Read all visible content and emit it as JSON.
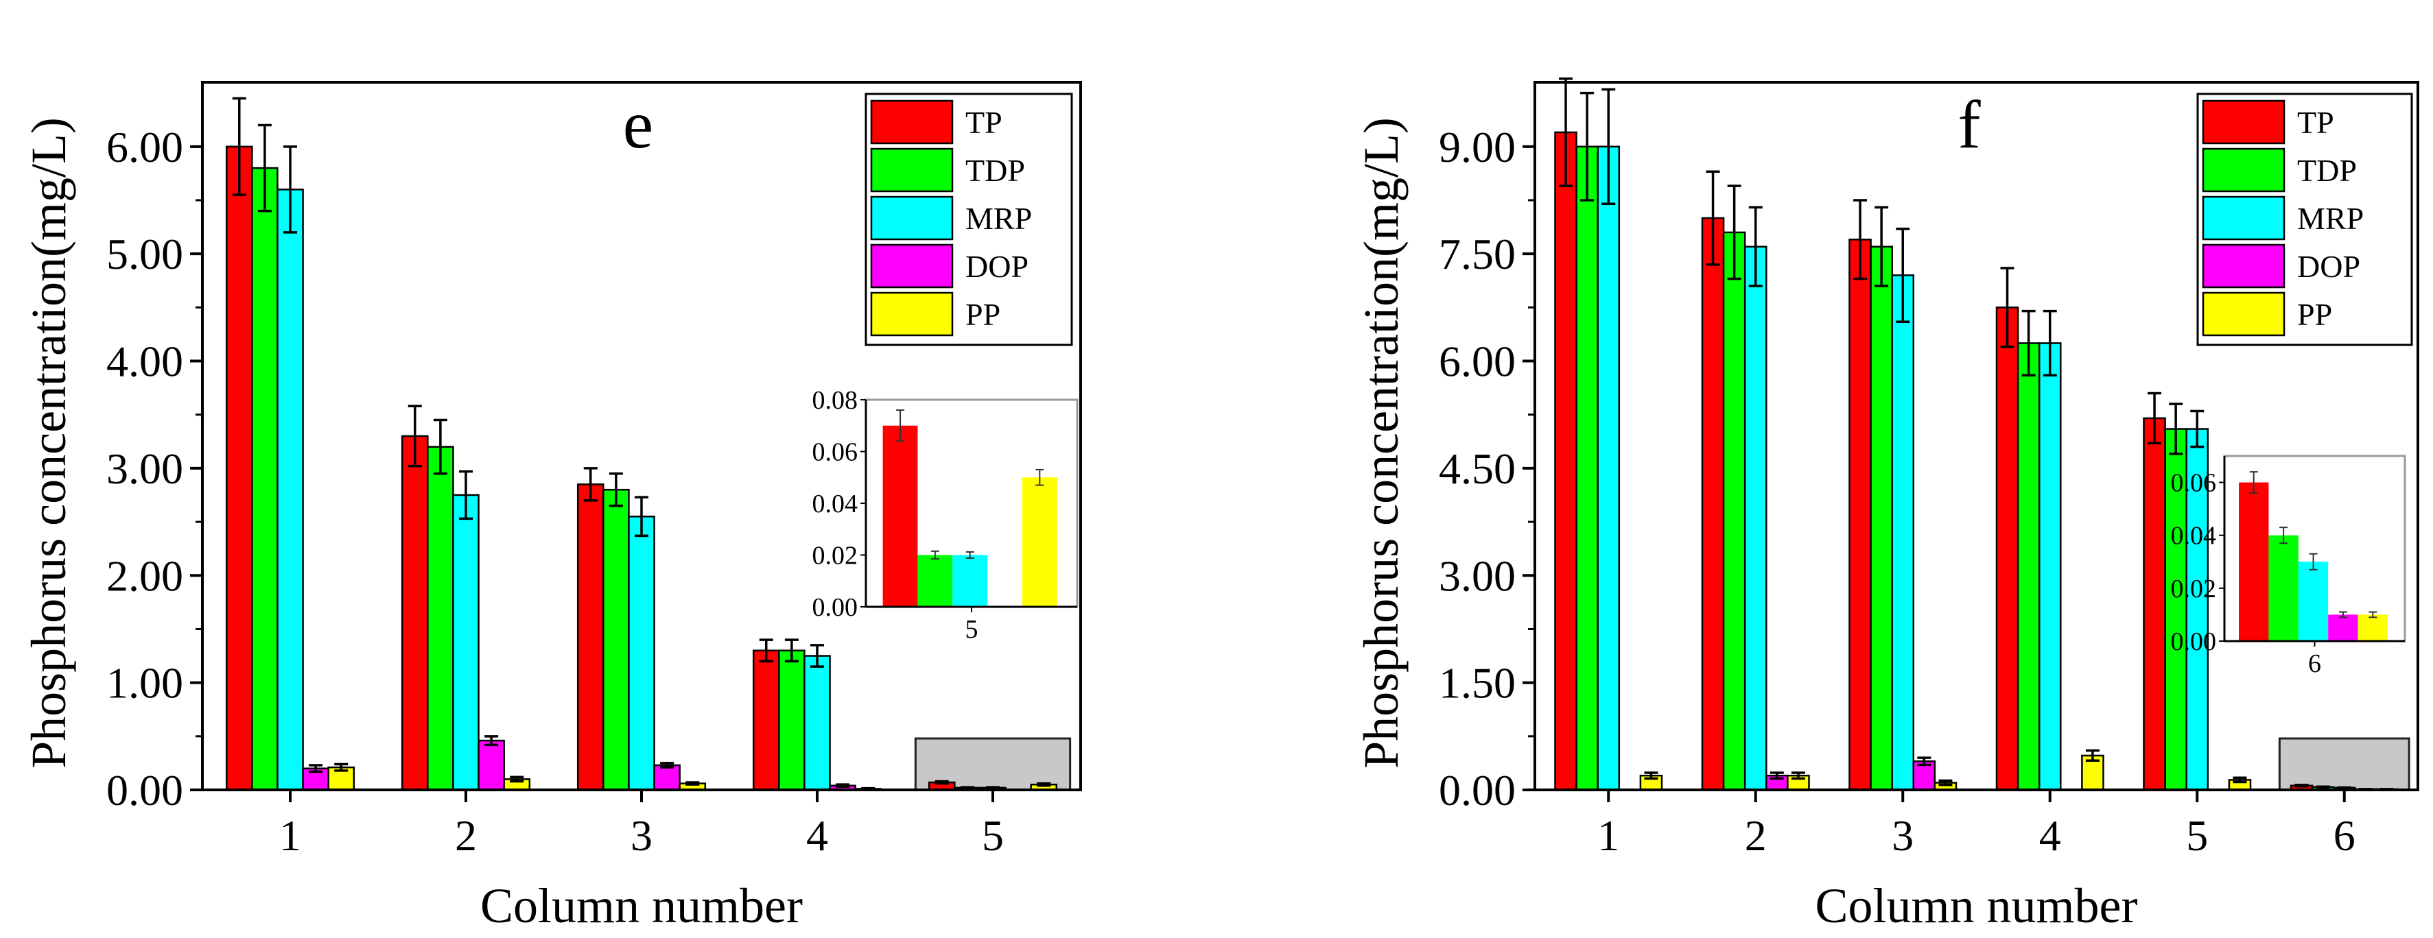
{
  "chart_data": [
    {
      "panel": "e",
      "type": "bar",
      "panel_label": "e",
      "xlabel": "Column number",
      "ylabel": "Phosphorus concentration(mg/L)",
      "ylim": [
        0,
        6.6
      ],
      "yticks": [
        0,
        1,
        2,
        3,
        4,
        5,
        6
      ],
      "ytick_labels": [
        "0.00",
        "1.00",
        "2.00",
        "3.00",
        "4.00",
        "5.00",
        "6.00"
      ],
      "categories": [
        "1",
        "2",
        "3",
        "4",
        "5"
      ],
      "series": [
        {
          "name": "TP",
          "color": "#ff0000",
          "values": [
            6.0,
            3.3,
            2.85,
            1.3,
            0.07
          ],
          "errors": [
            0.45,
            0.28,
            0.15,
            0.1,
            0.01
          ]
        },
        {
          "name": "TDP",
          "color": "#00ff00",
          "values": [
            5.8,
            3.2,
            2.8,
            1.3,
            0.02
          ],
          "errors": [
            0.4,
            0.25,
            0.15,
            0.1,
            0.005
          ]
        },
        {
          "name": "MRP",
          "color": "#00ffff",
          "values": [
            5.6,
            2.75,
            2.55,
            1.25,
            0.02
          ],
          "errors": [
            0.4,
            0.22,
            0.18,
            0.1,
            0.005
          ]
        },
        {
          "name": "DOP",
          "color": "#ff00ff",
          "values": [
            0.2,
            0.46,
            0.23,
            0.04,
            0.0
          ],
          "errors": [
            0.03,
            0.04,
            0.02,
            0.01,
            0.0
          ]
        },
        {
          "name": "PP",
          "color": "#ffff00",
          "values": [
            0.21,
            0.1,
            0.06,
            0.01,
            0.05
          ],
          "errors": [
            0.03,
            0.02,
            0.01,
            0.005,
            0.01
          ]
        }
      ],
      "legend": [
        "TP",
        "TDP",
        "MRP",
        "DOP",
        "PP"
      ],
      "legend_position": "top-right",
      "inset": {
        "category": "5",
        "ylim": [
          0,
          0.08
        ],
        "yticks": [
          0,
          0.02,
          0.04,
          0.06,
          0.08
        ],
        "ytick_labels": [
          "0.00",
          "0.02",
          "0.04",
          "0.06",
          "0.08"
        ],
        "values": [
          0.07,
          0.02,
          0.02,
          0.0,
          0.05
        ],
        "errors": [
          0.006,
          0.0015,
          0.0012,
          0.0,
          0.003
        ]
      }
    },
    {
      "panel": "f",
      "type": "bar",
      "panel_label": "f",
      "xlabel": "Column number",
      "ylabel": "Phosphorus concentration(mg/L)",
      "ylim": [
        0,
        9.9
      ],
      "yticks": [
        0,
        1.5,
        3,
        4.5,
        6,
        7.5,
        9
      ],
      "ytick_labels": [
        "0.00",
        "1.50",
        "3.00",
        "4.50",
        "6.00",
        "7.50",
        "9.00"
      ],
      "categories": [
        "1",
        "2",
        "3",
        "4",
        "5",
        "6"
      ],
      "series": [
        {
          "name": "TP",
          "color": "#ff0000",
          "values": [
            9.2,
            8.0,
            7.7,
            6.75,
            5.2,
            0.06
          ],
          "errors": [
            0.75,
            0.65,
            0.55,
            0.55,
            0.35,
            0.01
          ]
        },
        {
          "name": "TDP",
          "color": "#00ff00",
          "values": [
            9.0,
            7.8,
            7.6,
            6.25,
            5.05,
            0.04
          ],
          "errors": [
            0.75,
            0.65,
            0.55,
            0.45,
            0.35,
            0.005
          ]
        },
        {
          "name": "MRP",
          "color": "#00ffff",
          "values": [
            9.0,
            7.6,
            7.2,
            6.25,
            5.05,
            0.03
          ],
          "errors": [
            0.8,
            0.55,
            0.65,
            0.45,
            0.25,
            0.004
          ]
        },
        {
          "name": "DOP",
          "color": "#ff00ff",
          "values": [
            0.0,
            0.2,
            0.4,
            0.0,
            0.0,
            0.01
          ],
          "errors": [
            0.0,
            0.04,
            0.05,
            0.0,
            0.0,
            0.001
          ]
        },
        {
          "name": "PP",
          "color": "#ffff00",
          "values": [
            0.2,
            0.2,
            0.1,
            0.48,
            0.14,
            0.01
          ],
          "errors": [
            0.04,
            0.04,
            0.03,
            0.07,
            0.03,
            0.001
          ]
        }
      ],
      "legend": [
        "TP",
        "TDP",
        "MRP",
        "DOP",
        "PP"
      ],
      "legend_position": "top-right",
      "inset": {
        "category": "6",
        "ylim": [
          0,
          0.07
        ],
        "yticks": [
          0,
          0.02,
          0.04,
          0.06
        ],
        "ytick_labels": [
          "0.00",
          "0.02",
          "0.04",
          "0.06"
        ],
        "values": [
          0.06,
          0.04,
          0.03,
          0.01,
          0.01
        ],
        "errors": [
          0.004,
          0.003,
          0.003,
          0.001,
          0.001
        ]
      }
    }
  ]
}
